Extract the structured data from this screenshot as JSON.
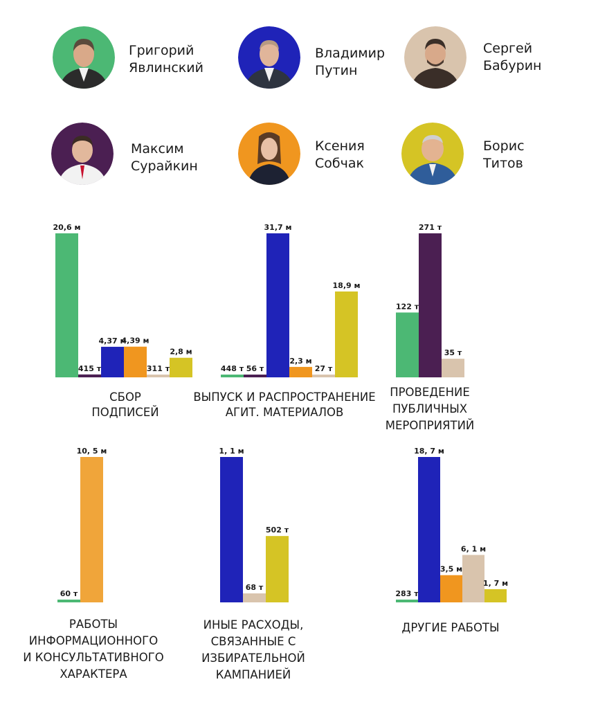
{
  "candidates": [
    {
      "first": "Григорий",
      "last": "Явлинский",
      "color": "#4cb874"
    },
    {
      "first": "Владимир",
      "last": "Путин",
      "color": "#1f23b8"
    },
    {
      "first": "Сергей",
      "last": "Бабурин",
      "color": "#d9c4ad"
    },
    {
      "first": "Максим",
      "last": "Сурайкин",
      "color": "#4b1f52"
    },
    {
      "first": "Ксения",
      "last": "Собчак",
      "color": "#f0961f"
    },
    {
      "first": "Борис",
      "last": "Титов",
      "color": "#d5c425"
    }
  ],
  "chart_data": [
    {
      "type": "bar",
      "title_lines": [
        "СБОР",
        "ПОДПИСЕЙ"
      ],
      "categories": [
        "Явлинский",
        "Сурайкин",
        "Путин",
        "Собчак",
        "Бабурин",
        "Титов"
      ],
      "values": [
        20.6,
        0.415,
        4.37,
        4.39,
        0.311,
        2.8
      ],
      "labels": [
        "20,6 м",
        "415 т",
        "4,37 м",
        "4,39 м",
        "311 т",
        "2,8 м"
      ],
      "colors": [
        "#4cb874",
        "#4b1f52",
        "#1f23b8",
        "#f0961f",
        "#d9c4ad",
        "#d5c425"
      ],
      "unit": "млн руб."
    },
    {
      "type": "bar",
      "title_lines": [
        "ВЫПУСК И РАСПРОСТРАНЕНИЕ",
        "АГИТ. МАТЕРИАЛОВ"
      ],
      "categories": [
        "Явлинский",
        "Сурайкин",
        "Путин",
        "Собчак",
        "Бабурин",
        "Титов"
      ],
      "values": [
        0.448,
        0.056,
        31.7,
        2.3,
        0.027,
        18.9
      ],
      "labels": [
        "448 т",
        "56 т",
        "31,7 м",
        "2,3 м",
        "27 т",
        "18,9 м"
      ],
      "colors": [
        "#4cb874",
        "#4b1f52",
        "#1f23b8",
        "#f0961f",
        "#d9c4ad",
        "#d5c425"
      ],
      "unit": "млн руб."
    },
    {
      "type": "bar",
      "title_lines": [
        "ПРОВЕДЕНИЕ",
        "ПУБЛИЧНЫХ",
        "МЕРОПРИЯТИЙ"
      ],
      "categories": [
        "Явлинский",
        "Сурайкин",
        "Бабурин"
      ],
      "values": [
        122,
        271,
        35
      ],
      "labels": [
        "122 т",
        "271 т",
        "35 т"
      ],
      "colors": [
        "#4cb874",
        "#4b1f52",
        "#d9c4ad"
      ],
      "unit": "тыс. руб."
    },
    {
      "type": "bar",
      "title_lines": [
        "РАБОТЫ",
        "ИНФОРМАЦИОННОГО",
        "И КОНСУЛЬТАТИВНОГО",
        "ХАРАКТЕРА"
      ],
      "categories": [
        "Явлинский",
        "Собчак"
      ],
      "values": [
        0.06,
        10.5
      ],
      "labels": [
        "60 т",
        "10, 5 м"
      ],
      "colors": [
        "#4cb874",
        "#f0a53a"
      ],
      "unit": "млн руб."
    },
    {
      "type": "bar",
      "title_lines": [
        "ИНЫЕ РАСХОДЫ,",
        "СВЯЗАННЫЕ С",
        "ИЗБИРАТЕЛЬНОЙ",
        "КАМПАНИЕЙ"
      ],
      "categories": [
        "Путин",
        "Бабурин",
        "Титов"
      ],
      "values": [
        1100,
        68,
        502
      ],
      "labels": [
        "1, 1 м",
        "68 т",
        "502 т"
      ],
      "colors": [
        "#1f23b8",
        "#d9c4ad",
        "#d5c425"
      ],
      "unit": "тыс. руб."
    },
    {
      "type": "bar",
      "title_lines": [
        "ДРУГИЕ РАБОТЫ"
      ],
      "categories": [
        "Явлинский",
        "Путин",
        "Собчак",
        "Бабурин",
        "Титов"
      ],
      "values": [
        0.283,
        18.7,
        3.5,
        6.1,
        1.7
      ],
      "labels": [
        "283 т",
        "18, 7 м",
        "3,5 м",
        "6, 1 м",
        "1, 7 м"
      ],
      "colors": [
        "#4cb874",
        "#1f23b8",
        "#f0961f",
        "#d9c4ad",
        "#d5c425"
      ],
      "unit": "млн руб."
    }
  ]
}
